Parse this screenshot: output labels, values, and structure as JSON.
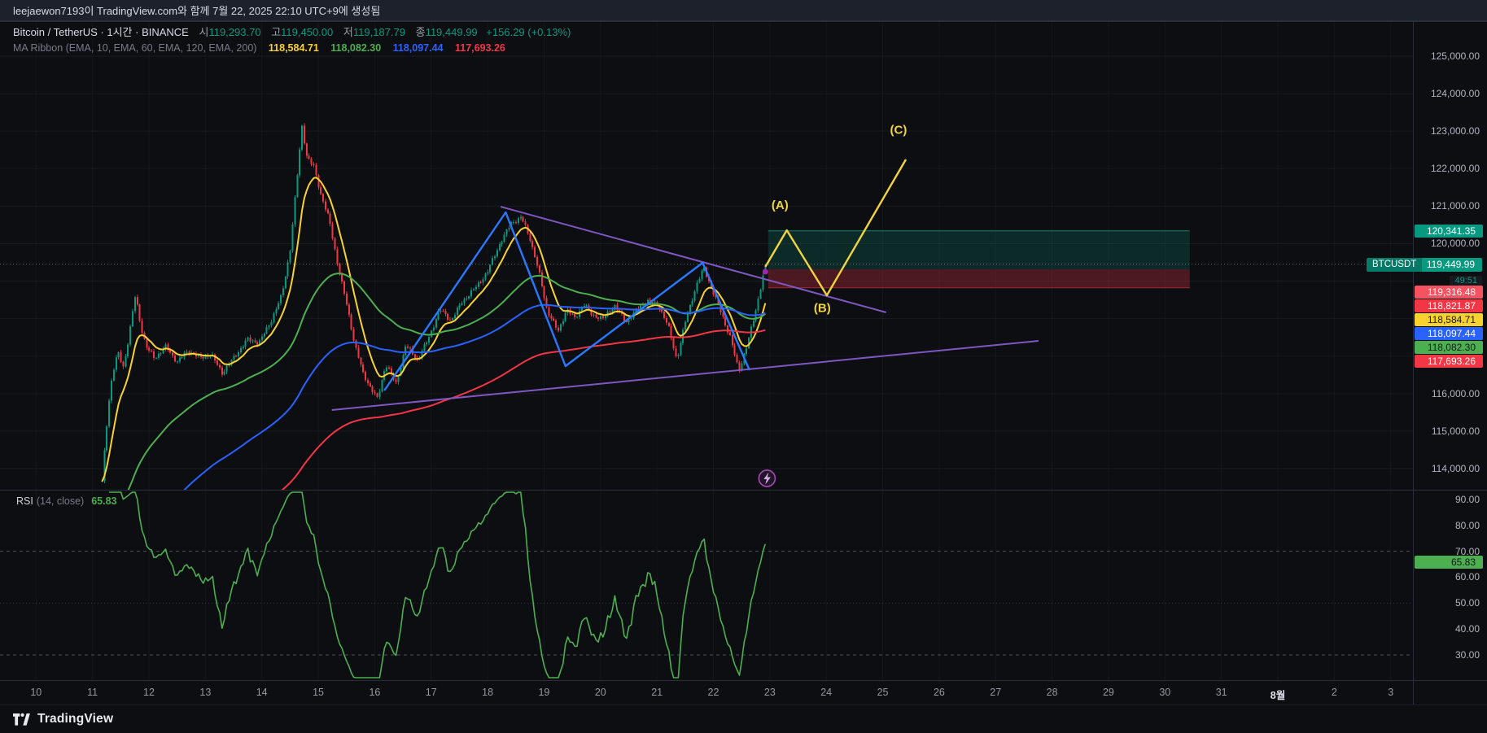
{
  "attribution": "leejaewon7193이 TradingView.com와 함께 7월 22, 2025 22:10 UTC+9에 생성됨",
  "header": {
    "title": "Bitcoin / TetherUS · 1시간 · BINANCE",
    "ohlc": {
      "o_label": "시",
      "o": "119,293.70",
      "h_label": "고",
      "h": "119,450.00",
      "l_label": "저",
      "l": "119,187.79",
      "c_label": "종",
      "c": "119,449.99",
      "change": "+156.29 (+0.13%)"
    },
    "ma_label": "MA Ribbon (EMA, 10, EMA, 60, EMA, 120, EMA, 200)",
    "ma_values": [
      "118,584.71",
      "118,082.30",
      "118,097.44",
      "117,693.26"
    ]
  },
  "price_axis": {
    "labels": [
      "125,000.00",
      "124,000.00",
      "123,000.00",
      "122,000.00",
      "121,000.00",
      "120,000.00",
      "116,000.00",
      "115,000.00",
      "114,000.00"
    ],
    "target_badge": {
      "text": "120,341.35",
      "bg": "#089981",
      "fg": "#ffffff"
    },
    "symbol_badge": {
      "symbol": "BTCUSDT",
      "price": "119,449.99",
      "countdown": "49:51"
    },
    "stacked_badges": [
      {
        "text": "119,316.48",
        "bg": "#f7525f",
        "fg": "#ffffff"
      },
      {
        "text": "118,821.87",
        "bg": "#f23645",
        "fg": "#ffffff"
      },
      {
        "text": "118,584.71",
        "bg": "#f8d22e",
        "fg": "#15161a"
      },
      {
        "text": "118,097.44",
        "bg": "#2962ff",
        "fg": "#ffffff"
      },
      {
        "text": "118,082.30",
        "bg": "#4caf50",
        "fg": "#15161a"
      },
      {
        "text": "117,693.26",
        "bg": "#f23645",
        "fg": "#ffffff"
      }
    ]
  },
  "rsi": {
    "name": "RSI",
    "params": "(14, close)",
    "value": "65.83",
    "levels": [
      "90.00",
      "80.00",
      "70.00",
      "60.00",
      "50.00",
      "40.00",
      "30.00"
    ],
    "badge_bg": "#4caf50"
  },
  "time_axis": {
    "labels": [
      "10",
      "11",
      "12",
      "13",
      "14",
      "15",
      "16",
      "17",
      "18",
      "19",
      "20",
      "21",
      "22",
      "23",
      "24",
      "25",
      "26",
      "27",
      "28",
      "29",
      "30",
      "31",
      "8월",
      "2",
      "3"
    ]
  },
  "footer": {
    "logo_text": "TradingView"
  },
  "chart_data": {
    "type": "candlestick",
    "symbol": "BTCUSDT",
    "exchange": "BINANCE",
    "interval": "1시간",
    "ylim": [
      113436,
      125932
    ],
    "last_candle": {
      "o": 119293.7,
      "h": 119450.0,
      "l": 119187.79,
      "c": 119449.99
    },
    "colors": {
      "up": "#089981",
      "down": "#f23645",
      "rsi": "#4caf50"
    },
    "rsi_period": 14,
    "rsi_value": 65.83,
    "emas": [
      {
        "period": 10,
        "color": "#f8d22e",
        "seed": 113650,
        "value": 118584.71
      },
      {
        "period": 60,
        "color": "#4caf50",
        "seed": 112000,
        "value": 118082.3
      },
      {
        "period": 120,
        "color": "#2962ff",
        "seed": 110500,
        "value": 118097.44
      },
      {
        "period": 200,
        "color": "#f23645",
        "seed": 109000,
        "value": 117693.26
      }
    ],
    "price_path": [
      [
        11.17,
        113650
      ],
      [
        11.22,
        114600
      ],
      [
        11.28,
        115650
      ],
      [
        11.35,
        116500
      ],
      [
        11.45,
        117100
      ],
      [
        11.55,
        116700
      ],
      [
        11.65,
        117550
      ],
      [
        11.76,
        118650
      ],
      [
        11.85,
        117850
      ],
      [
        11.95,
        117250
      ],
      [
        12.1,
        116950
      ],
      [
        12.3,
        117250
      ],
      [
        12.5,
        116850
      ],
      [
        12.7,
        117150
      ],
      [
        12.9,
        116950
      ],
      [
        13.1,
        117050
      ],
      [
        13.3,
        116550
      ],
      [
        13.55,
        117050
      ],
      [
        13.75,
        117450
      ],
      [
        13.95,
        117350
      ],
      [
        14.15,
        117900
      ],
      [
        14.35,
        118600
      ],
      [
        14.5,
        119800
      ],
      [
        14.62,
        121700
      ],
      [
        14.71,
        123150
      ],
      [
        14.8,
        122300
      ],
      [
        14.92,
        122050
      ],
      [
        15.05,
        121300
      ],
      [
        15.2,
        120600
      ],
      [
        15.35,
        119400
      ],
      [
        15.5,
        118400
      ],
      [
        15.65,
        117300
      ],
      [
        15.8,
        116500
      ],
      [
        16.05,
        115850
      ],
      [
        16.2,
        116800
      ],
      [
        16.38,
        116250
      ],
      [
        16.55,
        117300
      ],
      [
        16.75,
        116900
      ],
      [
        16.95,
        117450
      ],
      [
        17.15,
        118250
      ],
      [
        17.35,
        117950
      ],
      [
        17.55,
        118450
      ],
      [
        17.8,
        118850
      ],
      [
        18.0,
        119250
      ],
      [
        18.2,
        119950
      ],
      [
        18.42,
        120550
      ],
      [
        18.6,
        120700
      ],
      [
        18.75,
        120150
      ],
      [
        18.9,
        119300
      ],
      [
        19.05,
        118250
      ],
      [
        19.25,
        117650
      ],
      [
        19.4,
        118250
      ],
      [
        19.55,
        118000
      ],
      [
        19.7,
        118400
      ],
      [
        19.85,
        118100
      ],
      [
        20.05,
        118000
      ],
      [
        20.25,
        118350
      ],
      [
        20.45,
        117900
      ],
      [
        20.65,
        118250
      ],
      [
        20.85,
        118500
      ],
      [
        21.05,
        118300
      ],
      [
        21.2,
        117800
      ],
      [
        21.35,
        116900
      ],
      [
        21.5,
        117900
      ],
      [
        21.7,
        118900
      ],
      [
        21.83,
        119350
      ],
      [
        21.95,
        118900
      ],
      [
        22.1,
        118300
      ],
      [
        22.3,
        117500
      ],
      [
        22.45,
        116600
      ],
      [
        22.6,
        117300
      ],
      [
        22.75,
        118200
      ],
      [
        22.88,
        119150
      ],
      [
        22.92,
        119449.99
      ]
    ],
    "drawings": {
      "price_line": 119449.99,
      "zones": {
        "day_start": 22.97,
        "day_end": 30.44,
        "target_top": 120341.35,
        "entry": 119316.48,
        "stop_bottom": 118821.87
      },
      "trendlines": [
        {
          "points": [
            [
              18.23,
              120986
            ],
            [
              25.06,
              118166
            ]
          ],
          "color": "#7e57c2"
        },
        {
          "points": [
            [
              15.24,
              115562
            ],
            [
              27.76,
              117407
            ]
          ],
          "color": "#7e57c2"
        }
      ],
      "blue_zigzag": {
        "points": [
          [
            16.17,
            116083
          ],
          [
            18.32,
            120834
          ],
          [
            19.38,
            116734
          ],
          [
            21.81,
            119489
          ],
          [
            22.64,
            116626
          ]
        ],
        "color": "#2979ff"
      },
      "abc_projection": {
        "points": [
          [
            22.92,
            119381
          ],
          [
            23.3,
            120357
          ],
          [
            24.01,
            118621
          ],
          [
            25.41,
            122244
          ]
        ],
        "color": "#f2d43d",
        "labels": [
          {
            "text": "(A)",
            "day": 23.18,
            "price": 120920
          },
          {
            "text": "(B)",
            "day": 23.93,
            "price": 118180
          },
          {
            "text": "(C)",
            "day": 25.28,
            "price": 122930
          }
        ]
      },
      "markers": [
        {
          "type": "dot",
          "day": 22.92,
          "price": 119250
        },
        {
          "type": "lightning",
          "day": 22.95,
          "price": 113740
        }
      ]
    }
  }
}
